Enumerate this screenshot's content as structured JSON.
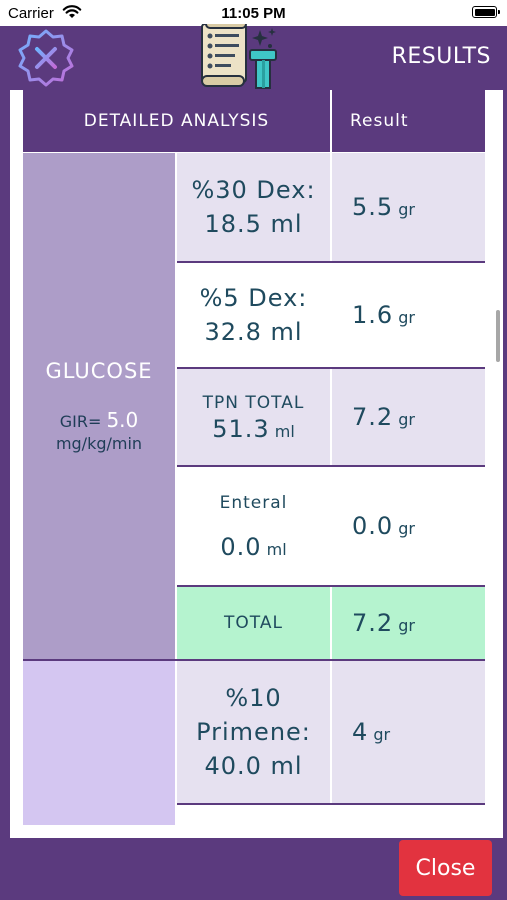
{
  "status_bar": {
    "carrier": "Carrier",
    "time": "11:05 PM"
  },
  "header": {
    "title": "RESULTS"
  },
  "table": {
    "col_left": "DETAILED ANALYSIS",
    "col_right": "Result",
    "glucose": {
      "label": "GLUCOSE",
      "gir_prefix": "GIR=",
      "gir_value": "5.0",
      "gir_unit": "mg/kg/min"
    },
    "rows": [
      {
        "line1": "%30 Dex:",
        "line2": "18.5 ml",
        "result": "5.5",
        "unit": "gr"
      },
      {
        "line1": "%5 Dex:",
        "line2": "32.8 ml",
        "result": "1.6",
        "unit": "gr"
      },
      {
        "line1": "TPN TOTAL",
        "value": "51.3",
        "value_unit": "ml",
        "result": "7.2",
        "unit": "gr"
      },
      {
        "line1": "Enteral",
        "value": "0.0",
        "value_unit": "ml",
        "result": "0.0",
        "unit": "gr"
      },
      {
        "line1": "TOTAL",
        "result": "7.2",
        "unit": "gr"
      },
      {
        "line1": "%10",
        "line2": "Primene:",
        "line3": "40.0 ml",
        "result": "4",
        "unit": "gr"
      }
    ]
  },
  "footer": {
    "close_label": "Close"
  },
  "colors": {
    "primary": "#5b3a7e",
    "close_button": "#e2333f",
    "total_row": "#b5f3cf",
    "glucose_block": "#ad9dc8",
    "protein_block": "#d4c6f1"
  }
}
